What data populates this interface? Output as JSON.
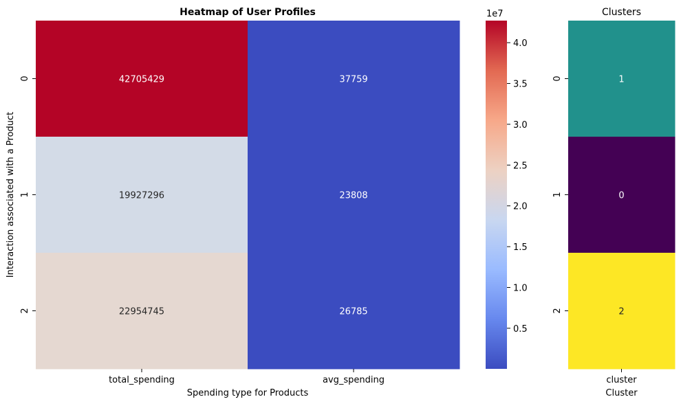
{
  "chart_data": [
    {
      "type": "heatmap",
      "title": "Heatmap of User Profiles",
      "xlabel": "Spending type for Products",
      "ylabel": "Interaction associated with a Product",
      "columns": [
        "total_spending",
        "avg_spending"
      ],
      "rows": [
        "0",
        "1",
        "2"
      ],
      "values": [
        [
          42705429,
          37759
        ],
        [
          19927296,
          23808
        ],
        [
          22954745,
          26785
        ]
      ],
      "cell_colors": [
        [
          "#b40426",
          "#3b4cc0"
        ],
        [
          "#d3dbe7",
          "#3b4cc0"
        ],
        [
          "#e5d8d1",
          "#3b4cc0"
        ]
      ],
      "label_colors": [
        [
          "#ffffff",
          "#ffffff"
        ],
        [
          "#262626",
          "#ffffff"
        ],
        [
          "#262626",
          "#ffffff"
        ]
      ],
      "colormap": "coolwarm",
      "colorbar": {
        "range": [
          23808,
          42705429
        ],
        "ticks": [
          0.5,
          1.0,
          1.5,
          2.0,
          2.5,
          3.0,
          3.5,
          4.0
        ],
        "multiplier": "1e7",
        "stops": [
          "#3b4cc0",
          "#6788ee",
          "#9abbff",
          "#c9d7f0",
          "#edd1c2",
          "#f7a889",
          "#e26952",
          "#b40426"
        ]
      }
    },
    {
      "type": "heatmap",
      "title": "Clusters",
      "xlabel": "Cluster",
      "ylabel": "",
      "columns": [
        "cluster"
      ],
      "rows": [
        "0",
        "1",
        "2"
      ],
      "values": [
        [
          1
        ],
        [
          0
        ],
        [
          2
        ]
      ],
      "cell_colors": [
        [
          "#21918c"
        ],
        [
          "#440154"
        ],
        [
          "#fde725"
        ]
      ],
      "label_colors": [
        [
          "#ffffff"
        ],
        [
          "#ffffff"
        ],
        [
          "#262626"
        ]
      ],
      "colormap": "viridis"
    }
  ]
}
